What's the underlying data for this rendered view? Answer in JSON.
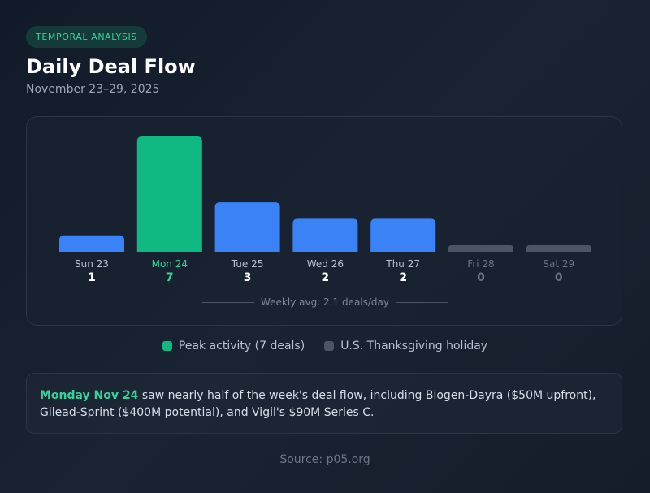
{
  "header": {
    "badge": "TEMPORAL ANALYSIS",
    "title": "Daily Deal Flow",
    "subtitle": "November 23–29, 2025"
  },
  "colors": {
    "peak": "#10b981",
    "normal": "#3b82f6",
    "holiday": "#4b5563",
    "peak_label": "#34d399",
    "normal_label": "#b8c2d0",
    "holiday_label": "#6b7280",
    "value_normal": "#ffffff"
  },
  "chart_data": {
    "type": "bar",
    "categories": [
      "Sun 23",
      "Mon 24",
      "Tue 25",
      "Wed 26",
      "Thu 27",
      "Fri 28",
      "Sat 29"
    ],
    "values": [
      1,
      7,
      3,
      2,
      2,
      0,
      0
    ],
    "value_labels": [
      "1",
      "7",
      "3",
      "2",
      "2",
      "0",
      "0"
    ],
    "status": [
      "normal",
      "peak",
      "normal",
      "normal",
      "normal",
      "holiday",
      "holiday"
    ],
    "ylim": [
      0,
      7
    ],
    "grid": false,
    "average_label": "Weekly avg: 2.1 deals/day"
  },
  "legend": {
    "peak_label": "Peak activity (7 deals)",
    "holiday_label": "U.S. Thanksgiving holiday"
  },
  "note": {
    "highlight": "Monday Nov 24",
    "text": " saw nearly half of the week's deal flow, including Biogen-Dayra ($50M upfront), Gilead-Sprint ($400M potential), and Vigil's $90M Series C."
  },
  "footer": {
    "source": "Source: p05.org"
  }
}
